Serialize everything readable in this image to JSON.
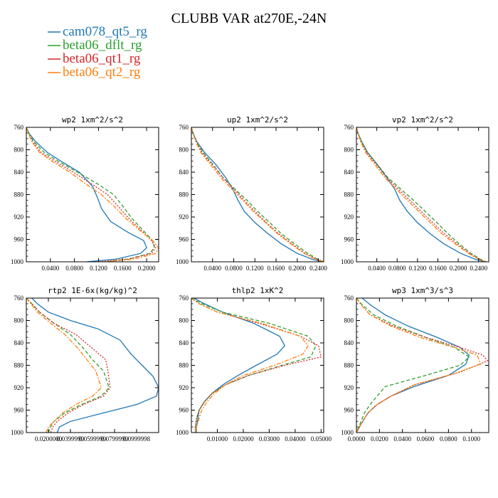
{
  "title": "CLUBB VAR at270E,-24N",
  "legend": [
    {
      "name": "cam078_qt5_rg",
      "color": "#1f77b4",
      "dash": "solid"
    },
    {
      "name": "beta06_dflt_rg",
      "color": "#2ca02c",
      "dash": "dashed"
    },
    {
      "name": "beta06_qt1_rg",
      "color": "#d62728",
      "dash": "dotted"
    },
    {
      "name": "beta06_qt2_rg",
      "color": "#ff7f0e",
      "dash": "dashdot"
    }
  ],
  "chart_data": [
    {
      "type": "line",
      "title": "wp2  1xm^2/s^2",
      "xlim": [
        0.0,
        0.22
      ],
      "ylim": [
        760,
        1000
      ],
      "xticks": [
        "0.0400",
        "0.0800",
        "0.1200",
        "0.1600",
        "0.2000"
      ],
      "xtick_values": [
        0.04,
        0.08,
        0.12,
        0.16,
        0.2
      ],
      "yticks": [
        760,
        800,
        840,
        880,
        920,
        960,
        1000
      ],
      "series": [
        {
          "name": "cam078_qt5_rg",
          "x": [
            0.0,
            0.004,
            0.015,
            0.035,
            0.06,
            0.088,
            0.11,
            0.118,
            0.125,
            0.14,
            0.17,
            0.195,
            0.2,
            0.19,
            0.15,
            0.1
          ],
          "y": [
            760,
            770,
            785,
            805,
            822,
            840,
            865,
            885,
            905,
            928,
            948,
            962,
            975,
            985,
            995,
            1000
          ]
        },
        {
          "name": "beta06_dflt_rg",
          "x": [
            0.0,
            0.004,
            0.012,
            0.03,
            0.055,
            0.085,
            0.12,
            0.145,
            0.16,
            0.175,
            0.195,
            0.21,
            0.213,
            0.205,
            0.17,
            0.13
          ],
          "y": [
            760,
            770,
            785,
            805,
            822,
            840,
            862,
            880,
            900,
            922,
            945,
            962,
            975,
            985,
            995,
            1000
          ]
        },
        {
          "name": "beta06_qt1_rg",
          "x": [
            0.0,
            0.003,
            0.01,
            0.025,
            0.05,
            0.078,
            0.11,
            0.135,
            0.152,
            0.17,
            0.192,
            0.208,
            0.215,
            0.208,
            0.17,
            0.12
          ],
          "y": [
            760,
            770,
            785,
            805,
            822,
            840,
            862,
            880,
            900,
            922,
            945,
            962,
            975,
            985,
            995,
            1000
          ]
        },
        {
          "name": "beta06_qt2_rg",
          "x": [
            0.0,
            0.003,
            0.009,
            0.022,
            0.045,
            0.072,
            0.1,
            0.125,
            0.145,
            0.165,
            0.19,
            0.21,
            0.22,
            0.215,
            0.18,
            0.13
          ],
          "y": [
            760,
            770,
            785,
            805,
            822,
            840,
            862,
            880,
            900,
            922,
            945,
            962,
            975,
            985,
            995,
            1000
          ]
        }
      ]
    },
    {
      "type": "line",
      "title": "up2  1xm^2/s^2",
      "xlim": [
        0.0,
        0.25
      ],
      "ylim": [
        760,
        1000
      ],
      "xticks": [
        "0.0400",
        "0.0800",
        "0.1200",
        "0.1600",
        "0.2000",
        "0.2400"
      ],
      "xtick_values": [
        0.04,
        0.08,
        0.12,
        0.16,
        0.2,
        0.24
      ],
      "yticks": [
        760,
        800,
        840,
        880,
        920,
        960,
        1000
      ],
      "series": [
        {
          "name": "cam078_qt5_rg",
          "x": [
            0.0,
            0.003,
            0.01,
            0.025,
            0.045,
            0.065,
            0.078,
            0.088,
            0.1,
            0.12,
            0.145,
            0.17,
            0.2,
            0.23,
            0.25
          ],
          "y": [
            760,
            770,
            785,
            805,
            825,
            850,
            870,
            890,
            910,
            930,
            950,
            968,
            985,
            996,
            1000
          ]
        },
        {
          "name": "beta06_dflt_rg",
          "x": [
            0.0,
            0.003,
            0.01,
            0.022,
            0.04,
            0.06,
            0.082,
            0.105,
            0.125,
            0.148,
            0.17,
            0.195,
            0.22,
            0.24,
            0.25
          ],
          "y": [
            760,
            770,
            785,
            805,
            825,
            850,
            870,
            890,
            910,
            930,
            950,
            968,
            985,
            996,
            1000
          ]
        },
        {
          "name": "beta06_qt1_rg",
          "x": [
            0.0,
            0.003,
            0.009,
            0.02,
            0.038,
            0.06,
            0.08,
            0.1,
            0.12,
            0.142,
            0.165,
            0.19,
            0.215,
            0.238,
            0.25
          ],
          "y": [
            760,
            770,
            785,
            805,
            825,
            850,
            870,
            890,
            910,
            930,
            950,
            968,
            985,
            996,
            1000
          ]
        },
        {
          "name": "beta06_qt2_rg",
          "x": [
            0.0,
            0.003,
            0.008,
            0.018,
            0.035,
            0.056,
            0.076,
            0.097,
            0.117,
            0.14,
            0.163,
            0.188,
            0.213,
            0.236,
            0.25
          ],
          "y": [
            760,
            770,
            785,
            805,
            825,
            850,
            870,
            890,
            910,
            930,
            950,
            968,
            985,
            996,
            1000
          ]
        }
      ]
    },
    {
      "type": "line",
      "title": "vp2  1xm^2/s^2",
      "xlim": [
        0.0,
        0.26
      ],
      "ylim": [
        760,
        1000
      ],
      "xticks": [
        "0.0400",
        "0.0800",
        "0.1200",
        "0.1600",
        "0.2000",
        "0.2400"
      ],
      "xtick_values": [
        0.04,
        0.08,
        0.12,
        0.16,
        0.2,
        0.24
      ],
      "yticks": [
        760,
        800,
        840,
        880,
        920,
        960,
        1000
      ],
      "series": [
        {
          "name": "cam078_qt5_rg",
          "x": [
            0.0,
            0.003,
            0.01,
            0.022,
            0.04,
            0.06,
            0.075,
            0.085,
            0.1,
            0.12,
            0.145,
            0.172,
            0.205,
            0.235,
            0.255
          ],
          "y": [
            760,
            770,
            785,
            805,
            825,
            850,
            870,
            890,
            910,
            930,
            950,
            968,
            985,
            996,
            1000
          ]
        },
        {
          "name": "beta06_dflt_rg",
          "x": [
            0.0,
            0.003,
            0.01,
            0.022,
            0.04,
            0.062,
            0.087,
            0.112,
            0.135,
            0.158,
            0.18,
            0.202,
            0.225,
            0.245,
            0.255
          ],
          "y": [
            760,
            770,
            785,
            805,
            825,
            850,
            870,
            890,
            910,
            930,
            950,
            968,
            985,
            996,
            1000
          ]
        },
        {
          "name": "beta06_qt1_rg",
          "x": [
            0.0,
            0.003,
            0.009,
            0.02,
            0.038,
            0.06,
            0.082,
            0.105,
            0.127,
            0.15,
            0.173,
            0.198,
            0.222,
            0.243,
            0.255
          ],
          "y": [
            760,
            770,
            785,
            805,
            825,
            850,
            870,
            890,
            910,
            930,
            950,
            968,
            985,
            996,
            1000
          ]
        },
        {
          "name": "beta06_qt2_rg",
          "x": [
            0.0,
            0.003,
            0.008,
            0.018,
            0.035,
            0.056,
            0.078,
            0.1,
            0.122,
            0.145,
            0.168,
            0.194,
            0.22,
            0.242,
            0.255
          ],
          "y": [
            760,
            770,
            785,
            805,
            825,
            850,
            870,
            890,
            910,
            930,
            950,
            968,
            985,
            996,
            1000
          ]
        }
      ]
    },
    {
      "type": "line",
      "title": "rtp2  1E-6x(kg/kg)^2",
      "xlim": [
        0.0,
        0.12
      ],
      "ylim": [
        760,
        1000
      ],
      "xticks": [
        "0.0200000",
        "0.0399999",
        "0.0599999",
        "0.0799999",
        "0.0999998"
      ],
      "xtick_values": [
        0.02,
        0.04,
        0.06,
        0.08,
        0.1
      ],
      "yticks": [
        760,
        800,
        840,
        880,
        920,
        960,
        1000
      ],
      "series": [
        {
          "name": "cam078_qt5_rg",
          "x": [
            0.005,
            0.01,
            0.02,
            0.04,
            0.065,
            0.085,
            0.095,
            0.105,
            0.115,
            0.12,
            0.118,
            0.1,
            0.07,
            0.04,
            0.03,
            0.028
          ],
          "y": [
            760,
            770,
            785,
            800,
            815,
            835,
            860,
            880,
            900,
            920,
            935,
            950,
            965,
            980,
            990,
            1000
          ]
        },
        {
          "name": "beta06_dflt_rg",
          "x": [
            0.0,
            0.005,
            0.012,
            0.025,
            0.04,
            0.052,
            0.06,
            0.07,
            0.075,
            0.068,
            0.05,
            0.035,
            0.025,
            0.022,
            0.02
          ],
          "y": [
            760,
            770,
            785,
            805,
            825,
            850,
            870,
            890,
            920,
            935,
            950,
            965,
            980,
            990,
            1000
          ]
        },
        {
          "name": "beta06_qt1_rg",
          "x": [
            0.0,
            0.005,
            0.012,
            0.025,
            0.045,
            0.06,
            0.072,
            0.074,
            0.076,
            0.07,
            0.052,
            0.038,
            0.028,
            0.024,
            0.022
          ],
          "y": [
            760,
            770,
            785,
            805,
            825,
            850,
            870,
            890,
            920,
            935,
            950,
            965,
            980,
            990,
            1000
          ]
        },
        {
          "name": "beta06_qt2_rg",
          "x": [
            0.0,
            0.004,
            0.01,
            0.022,
            0.035,
            0.047,
            0.055,
            0.063,
            0.068,
            0.06,
            0.045,
            0.033,
            0.025,
            0.02,
            0.018
          ],
          "y": [
            760,
            770,
            785,
            805,
            825,
            850,
            870,
            890,
            920,
            935,
            950,
            965,
            980,
            990,
            1000
          ]
        }
      ]
    },
    {
      "type": "line",
      "title": "thlp2  1xK^2",
      "xlim": [
        0.0,
        0.051
      ],
      "ylim": [
        760,
        1000
      ],
      "xticks": [
        "0.01000",
        "0.02000",
        "0.03000",
        "0.04000",
        "0.05000"
      ],
      "xtick_values": [
        0.01,
        0.02,
        0.03,
        0.04,
        0.05
      ],
      "yticks": [
        760,
        800,
        840,
        880,
        920,
        960,
        1000
      ],
      "series": [
        {
          "name": "cam078_qt5_rg",
          "x": [
            0.001,
            0.005,
            0.012,
            0.024,
            0.034,
            0.036,
            0.033,
            0.025,
            0.018,
            0.012,
            0.008,
            0.005,
            0.003,
            0.0025,
            0.002,
            0.002
          ],
          "y": [
            760,
            770,
            785,
            805,
            828,
            845,
            860,
            880,
            898,
            915,
            930,
            945,
            960,
            975,
            990,
            1000
          ]
        },
        {
          "name": "beta06_dflt_rg",
          "x": [
            0.0,
            0.004,
            0.012,
            0.03,
            0.045,
            0.048,
            0.046,
            0.035,
            0.022,
            0.013,
            0.008,
            0.005,
            0.003,
            0.002,
            0.0015,
            0.0015
          ],
          "y": [
            760,
            770,
            785,
            805,
            828,
            845,
            865,
            880,
            898,
            915,
            930,
            945,
            960,
            975,
            990,
            1000
          ]
        },
        {
          "name": "beta06_qt1_rg",
          "x": [
            0.0,
            0.003,
            0.01,
            0.026,
            0.042,
            0.049,
            0.05,
            0.036,
            0.022,
            0.013,
            0.008,
            0.005,
            0.003,
            0.002,
            0.0015,
            0.0015
          ],
          "y": [
            760,
            770,
            785,
            805,
            828,
            845,
            865,
            880,
            898,
            915,
            930,
            945,
            960,
            975,
            990,
            1000
          ]
        },
        {
          "name": "beta06_qt2_rg",
          "x": [
            0.0,
            0.003,
            0.01,
            0.027,
            0.042,
            0.045,
            0.043,
            0.032,
            0.02,
            0.013,
            0.009,
            0.006,
            0.004,
            0.003,
            0.002,
            0.002
          ],
          "y": [
            760,
            770,
            785,
            805,
            828,
            845,
            860,
            880,
            898,
            915,
            930,
            945,
            960,
            975,
            990,
            1000
          ]
        }
      ]
    },
    {
      "type": "line",
      "title": "wp3  1xm^3/s^3",
      "xlim": [
        0.0,
        0.115
      ],
      "ylim": [
        760,
        1000
      ],
      "xticks": [
        "0.0000",
        "0.0200",
        "0.0400",
        "0.0600",
        "0.0800",
        "0.1000"
      ],
      "xtick_values": [
        0.0,
        0.02,
        0.04,
        0.06,
        0.08,
        0.1
      ],
      "yticks": [
        760,
        800,
        840,
        880,
        920,
        960,
        1000
      ],
      "series": [
        {
          "name": "cam078_qt5_rg",
          "x": [
            0.005,
            0.012,
            0.025,
            0.045,
            0.07,
            0.09,
            0.098,
            0.095,
            0.08,
            0.05,
            0.03,
            0.018,
            0.01,
            0.004,
            0.0
          ],
          "y": [
            760,
            772,
            790,
            810,
            830,
            848,
            862,
            878,
            898,
            918,
            935,
            950,
            965,
            985,
            1000
          ]
        },
        {
          "name": "beta06_dflt_rg",
          "x": [
            0.0,
            0.005,
            0.015,
            0.035,
            0.06,
            0.085,
            0.098,
            0.09,
            0.06,
            0.025,
            0.018,
            0.012,
            0.007,
            0.003,
            0.0
          ],
          "y": [
            760,
            772,
            790,
            810,
            830,
            848,
            865,
            880,
            898,
            918,
            935,
            950,
            965,
            985,
            1000
          ]
        },
        {
          "name": "beta06_qt1_rg",
          "x": [
            0.0,
            0.004,
            0.012,
            0.032,
            0.06,
            0.09,
            0.11,
            0.114,
            0.09,
            0.05,
            0.03,
            0.018,
            0.01,
            0.004,
            0.0
          ],
          "y": [
            760,
            772,
            790,
            810,
            830,
            848,
            862,
            872,
            892,
            915,
            935,
            950,
            965,
            985,
            1000
          ]
        },
        {
          "name": "beta06_qt2_rg",
          "x": [
            0.0,
            0.004,
            0.012,
            0.03,
            0.055,
            0.085,
            0.105,
            0.108,
            0.085,
            0.05,
            0.03,
            0.018,
            0.01,
            0.004,
            0.0
          ],
          "y": [
            760,
            772,
            790,
            810,
            830,
            848,
            862,
            878,
            895,
            915,
            935,
            950,
            965,
            985,
            1000
          ]
        }
      ]
    }
  ]
}
